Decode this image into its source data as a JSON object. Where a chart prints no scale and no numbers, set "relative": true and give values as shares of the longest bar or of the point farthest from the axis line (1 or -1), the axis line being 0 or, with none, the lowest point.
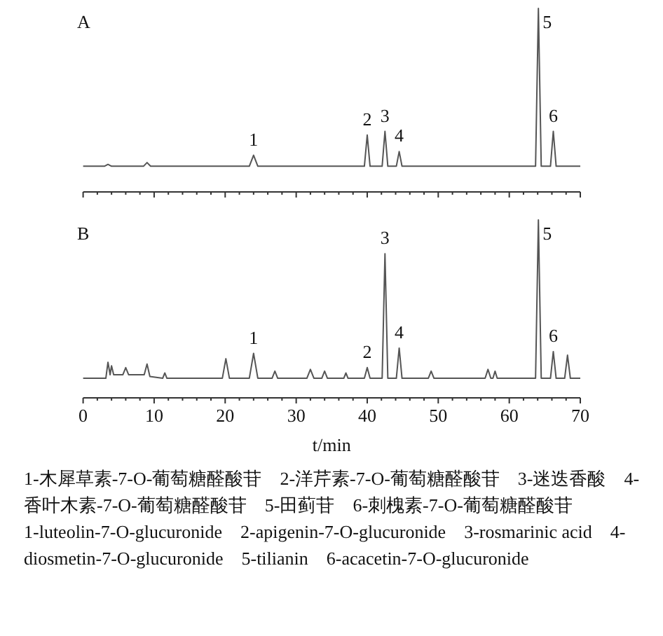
{
  "chart_data": [
    {
      "type": "line",
      "title": "A",
      "relative": true,
      "tick_labels": false,
      "xlim": [
        0,
        70
      ],
      "xticks": [
        0,
        10,
        20,
        30,
        40,
        50,
        60,
        70
      ],
      "series": [
        {
          "color": "#555555",
          "x": [
            0,
            3,
            3.5,
            4,
            8.5,
            9,
            9.5,
            23.4,
            24,
            24.6,
            39.6,
            40,
            40.4,
            42.1,
            42.5,
            42.9,
            44.1,
            44.5,
            44.9,
            63.7,
            64.1,
            64.5,
            65.8,
            66.2,
            66.6,
            70
          ],
          "values": [
            0.14,
            0.14,
            0.15,
            0.14,
            0.14,
            0.16,
            0.14,
            0.14,
            0.2,
            0.14,
            0.14,
            0.31,
            0.14,
            0.14,
            0.33,
            0.14,
            0.14,
            0.22,
            0.14,
            0.14,
            1,
            0.14,
            0.14,
            0.33,
            0.14,
            0.14
          ]
        }
      ],
      "annotations": [
        {
          "text": "1",
          "x": 24,
          "y": 0.2
        },
        {
          "text": "2",
          "x": 40,
          "y": 0.31
        },
        {
          "text": "3",
          "x": 42.5,
          "y": 0.33
        },
        {
          "text": "4",
          "x": 44.5,
          "y": 0.22
        },
        {
          "text": "5",
          "x": 64.1,
          "y": 1
        },
        {
          "text": "6",
          "x": 66.2,
          "y": 0.33
        }
      ]
    },
    {
      "type": "line",
      "title": "B",
      "relative": true,
      "tick_labels": "x",
      "xlim": [
        0,
        70
      ],
      "xticks": [
        0,
        10,
        20,
        30,
        40,
        50,
        60,
        70
      ],
      "xlabel": "t/min",
      "series": [
        {
          "color": "#555555",
          "x": [
            0,
            2.5,
            3.2,
            3.5,
            3.8,
            4,
            4.3,
            5.6,
            6,
            6.4,
            8.6,
            9,
            9.4,
            11.2,
            11.5,
            11.8,
            19.6,
            20.1,
            20.6,
            23.4,
            24,
            24.6,
            26.6,
            27,
            27.4,
            31.5,
            32,
            32.5,
            33.6,
            34,
            34.4,
            36.7,
            37,
            37.3,
            39.6,
            40,
            40.4,
            42.1,
            42.5,
            42.9,
            44.1,
            44.5,
            44.9,
            48.6,
            49,
            49.4,
            56.6,
            57,
            57.4,
            57.7,
            58,
            58.3,
            63.7,
            64.1,
            64.5,
            65.8,
            66.2,
            66.6,
            67.8,
            68.2,
            68.6,
            70
          ],
          "values": [
            0.11,
            0.11,
            0.11,
            0.2,
            0.13,
            0.18,
            0.13,
            0.13,
            0.17,
            0.13,
            0.13,
            0.19,
            0.12,
            0.11,
            0.14,
            0.11,
            0.11,
            0.22,
            0.11,
            0.11,
            0.25,
            0.11,
            0.11,
            0.15,
            0.11,
            0.11,
            0.16,
            0.11,
            0.11,
            0.15,
            0.11,
            0.11,
            0.14,
            0.11,
            0.11,
            0.17,
            0.11,
            0.11,
            0.81,
            0.11,
            0.11,
            0.28,
            0.11,
            0.11,
            0.15,
            0.11,
            0.11,
            0.16,
            0.11,
            0.11,
            0.15,
            0.11,
            0.11,
            1,
            0.11,
            0.11,
            0.26,
            0.11,
            0.11,
            0.24,
            0.11,
            0.11
          ]
        }
      ],
      "annotations": [
        {
          "text": "1",
          "x": 24,
          "y": 0.25
        },
        {
          "text": "2",
          "x": 40,
          "y": 0.17
        },
        {
          "text": "3",
          "x": 42.5,
          "y": 0.81
        },
        {
          "text": "4",
          "x": 44.5,
          "y": 0.28
        },
        {
          "text": "5",
          "x": 64.1,
          "y": 1
        },
        {
          "text": "6",
          "x": 66.2,
          "y": 0.26
        },
        "1-木犀草素-7-O-葡萄糖醛酸苷　2-洋芹素-7-O-葡萄糖醛酸苷　3-迷迭香酸　4-香叶木素-7-O-葡萄糖醛酸苷　5-田蓟苷　6-刺槐素-7-O-葡萄糖醛酸苷",
        "1-luteolin-7-O-glucuronide　2-apigenin-7-O-glucuronide　3-rosmarinic acid　4-diosmetin-7-O-glucuronide　5-tilianin　6-acacetin-7-O-glucuronide"
      ]
    }
  ]
}
